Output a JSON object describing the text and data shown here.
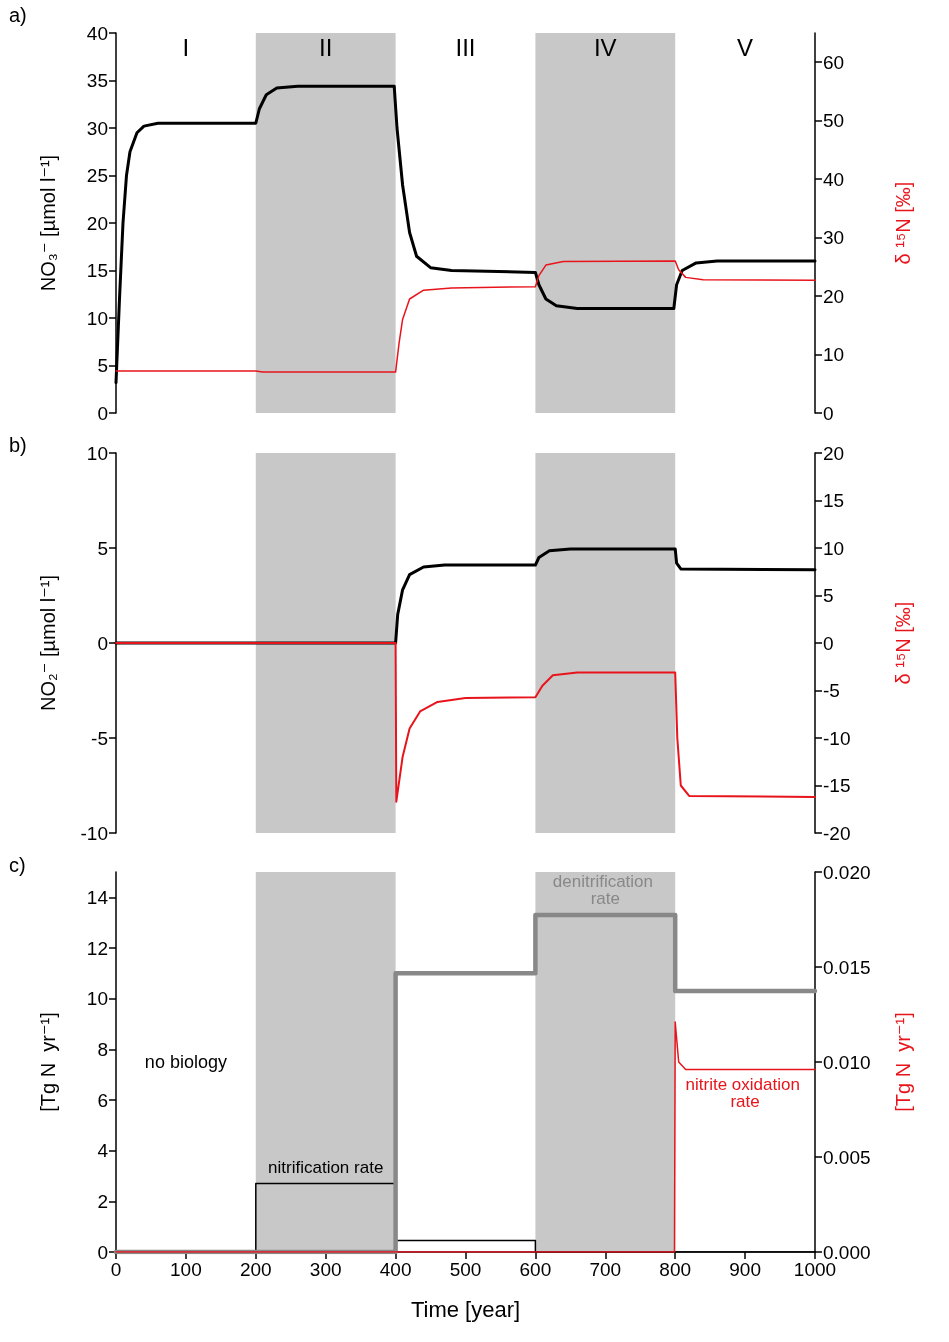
{
  "chart_data": [
    {
      "type": "line",
      "title": "a)",
      "ylabel": "NO₃⁻ [µmol l⁻¹]",
      "y2label": "δ ¹⁵N [‰]",
      "xlim": [
        0,
        1000
      ],
      "ylim": [
        0,
        40
      ],
      "yticks": [
        0,
        5,
        10,
        15,
        20,
        25,
        30,
        35,
        40
      ],
      "y2lim": [
        0,
        65
      ],
      "y2ticks": [
        0,
        10,
        20,
        30,
        40,
        50,
        60
      ],
      "tick_labels": "y",
      "grid": false,
      "legend": false,
      "marker": "none",
      "line_style": "solid",
      "bands": [
        {
          "axis": "x",
          "from": 200,
          "to": 400,
          "color": "#c8c8c8"
        },
        {
          "axis": "x",
          "from": 600,
          "to": 800,
          "color": "#c8c8c8"
        }
      ],
      "annotations": [
        "I",
        "II",
        "III",
        "IV",
        "V"
      ],
      "series": [
        {
          "color": "#000000",
          "x": [
            0,
            5,
            10,
            15,
            20,
            30,
            40,
            60,
            200,
            205,
            215,
            230,
            260,
            398,
            402,
            410,
            420,
            430,
            450,
            480,
            600,
            605,
            615,
            630,
            660,
            798,
            802,
            810,
            830,
            860,
            1000
          ],
          "values": [
            3.2,
            12,
            20,
            25,
            27.5,
            29.5,
            30.2,
            30.5,
            30.5,
            32,
            33.5,
            34.2,
            34.4,
            34.4,
            30,
            24,
            19,
            16.5,
            15.3,
            15,
            14.8,
            13.5,
            12,
            11.3,
            11,
            11,
            13.5,
            15,
            15.8,
            16,
            16
          ]
        },
        {
          "color": "#e8141b",
          "axis": "y2",
          "x": [
            0,
            200,
            210,
            400,
            405,
            410,
            420,
            440,
            480,
            600,
            605,
            615,
            640,
            800,
            805,
            815,
            840,
            1000
          ],
          "values": [
            7.2,
            7.2,
            7,
            7,
            12,
            16,
            19.5,
            21,
            21.4,
            21.6,
            23.5,
            25.3,
            25.9,
            26,
            24.5,
            23.2,
            22.8,
            22.7
          ]
        }
      ]
    },
    {
      "type": "line",
      "title": "b)",
      "ylabel": "NO₂⁻ [µmol l⁻¹]",
      "y2label": "δ ¹⁵N [‰]",
      "xlim": [
        0,
        1000
      ],
      "ylim": [
        -10,
        10
      ],
      "yticks": [
        -10,
        -5,
        0,
        5,
        10
      ],
      "y2lim": [
        -20,
        20
      ],
      "y2ticks": [
        -20,
        -15,
        -10,
        -5,
        0,
        5,
        10,
        15,
        20
      ],
      "tick_labels": "y",
      "grid": false,
      "legend": false,
      "marker": "none",
      "line_style": "solid",
      "bands": [
        {
          "axis": "x",
          "from": 200,
          "to": 400,
          "color": "#c8c8c8"
        },
        {
          "axis": "x",
          "from": 600,
          "to": 800,
          "color": "#c8c8c8"
        }
      ],
      "series": [
        {
          "color": "#000000",
          "x": [
            0,
            400,
            403,
            410,
            420,
            440,
            470,
            600,
            605,
            620,
            650,
            800,
            802,
            808,
            1000
          ],
          "values": [
            0,
            0,
            1.5,
            2.8,
            3.6,
            4,
            4.1,
            4.1,
            4.5,
            4.85,
            4.95,
            4.95,
            4.2,
            3.9,
            3.85
          ]
        },
        {
          "color": "#e8141b",
          "axis": "y2",
          "x": [
            0,
            400,
            401,
            410,
            420,
            435,
            460,
            500,
            600,
            610,
            625,
            660,
            800,
            803,
            808,
            820,
            1000
          ],
          "values": [
            0,
            0,
            -16.7,
            -12,
            -9,
            -7.2,
            -6.2,
            -5.8,
            -5.7,
            -4.5,
            -3.4,
            -3.1,
            -3.1,
            -10,
            -15,
            -16.1,
            -16.2
          ]
        }
      ]
    },
    {
      "type": "line",
      "title": "c)",
      "xlabel": "Time [year]",
      "ylabel": "[Tg N  yr⁻¹]",
      "y2label": "[Tg N  yr⁻¹]",
      "xlim": [
        0,
        1000
      ],
      "xticks": [
        0,
        100,
        200,
        300,
        400,
        500,
        600,
        700,
        800,
        900,
        1000
      ],
      "ylim": [
        0,
        15
      ],
      "yticks": [
        0,
        2,
        4,
        6,
        8,
        10,
        12,
        14
      ],
      "y2lim": [
        0,
        0.02
      ],
      "y2ticks": [
        {
          "value": 0,
          "label": "0.000"
        },
        {
          "value": 0.005,
          "label": "0.005"
        },
        {
          "value": 0.01,
          "label": "0.010"
        },
        {
          "value": 0.015,
          "label": "0.015"
        },
        {
          "value": 0.02,
          "label": "0.020"
        }
      ],
      "grid": false,
      "legend": false,
      "marker": "none",
      "line_style": "solid",
      "bands": [
        {
          "axis": "x",
          "from": 200,
          "to": 400,
          "color": "#c8c8c8"
        },
        {
          "axis": "x",
          "from": 600,
          "to": 800,
          "color": "#c8c8c8"
        }
      ],
      "annotations": [
        "no biology"
      ],
      "series": [
        {
          "type": "step",
          "name": "nitrification rate",
          "color": "#000000",
          "x": [
            0,
            200,
            400,
            600,
            1000
          ],
          "values": [
            0.05,
            2.7,
            0.45,
            0,
            0
          ]
        },
        {
          "type": "step",
          "name": "denitrification rate",
          "color": "#888888",
          "x": [
            0,
            400,
            600,
            800,
            1000
          ],
          "values": [
            0,
            11,
            13.3,
            10.3,
            10.3
          ]
        },
        {
          "name": "nitrite oxidation rate",
          "color": "#e8141b",
          "axis": "y2",
          "x": [
            0,
            799,
            800,
            805,
            815,
            1000
          ],
          "values": [
            0,
            0,
            0.0121,
            0.01,
            0.0096,
            0.0096
          ]
        }
      ]
    }
  ]
}
